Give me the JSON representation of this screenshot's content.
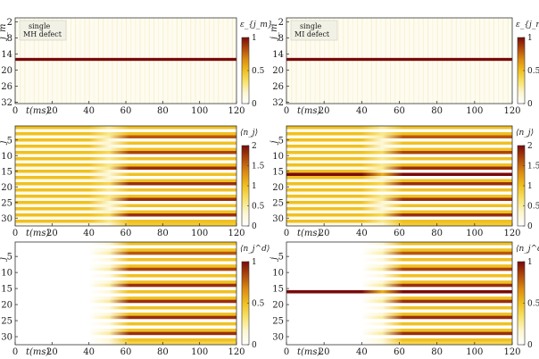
{
  "figure": {
    "colormap": [
      "#ffffff",
      "#fcf6d0",
      "#f8e26a",
      "#f0c020",
      "#dc8c12",
      "#b04a0c",
      "#7a0a0a"
    ]
  },
  "chart_data": [
    {
      "type": "heatmap",
      "panel": "top-left",
      "xlabel": "t(ms)",
      "ylabel": "j_m",
      "x_ticks": [
        0,
        20,
        40,
        60,
        80,
        100,
        120
      ],
      "y_ticks": [
        2,
        8,
        14,
        20,
        26,
        32
      ],
      "xlim": [
        0,
        120
      ],
      "ylim": [
        1,
        32
      ],
      "colorbar_label": "ε_{j_m}",
      "colorbar_ticks": [
        0,
        0.5,
        1
      ],
      "clim": [
        0,
        1
      ],
      "annotation": [
        "single",
        "MH defect"
      ],
      "baseline": 0.05,
      "defect_rows": [
        16
      ],
      "defect_value": 1.0
    },
    {
      "type": "heatmap",
      "panel": "top-right",
      "xlabel": "t(ms)",
      "ylabel": "j_m",
      "x_ticks": [
        0,
        20,
        40,
        60,
        80,
        100,
        120
      ],
      "y_ticks": [
        2,
        8,
        14,
        20,
        26,
        32
      ],
      "xlim": [
        0,
        120
      ],
      "ylim": [
        1,
        32
      ],
      "colorbar_label": "ε_{j_m}",
      "colorbar_ticks": [
        0,
        0.5,
        1
      ],
      "clim": [
        0,
        1
      ],
      "annotation": [
        "single",
        "MI defect"
      ],
      "baseline": 0.05,
      "defect_rows": [
        16
      ],
      "defect_value": 1.0
    },
    {
      "type": "heatmap",
      "panel": "middle-left",
      "xlabel": "t(ms)",
      "ylabel": "j",
      "x_ticks": [
        0,
        20,
        40,
        60,
        80,
        100,
        120
      ],
      "y_ticks": [
        5,
        10,
        15,
        20,
        25,
        30
      ],
      "xlim": [
        0,
        120
      ],
      "ylim": [
        1,
        32
      ],
      "colorbar_label": "⟨n_j⟩",
      "colorbar_ticks": [
        0,
        0.5,
        1,
        1.5,
        2
      ],
      "clim": [
        0,
        2
      ],
      "rows": 32,
      "row_values_initial": [
        1,
        0.15,
        1,
        0.15,
        1,
        0.15,
        1,
        0.15,
        1,
        0.15,
        1,
        0.15,
        1,
        0.15,
        1,
        0.15,
        1,
        0.15,
        1,
        0.15,
        1,
        0.15,
        1,
        0.15,
        1,
        0.15,
        1,
        0.15,
        1,
        0.15,
        1,
        0.15
      ],
      "row_values_final": [
        1,
        0,
        1,
        1.6,
        0,
        1,
        0,
        1,
        1.7,
        0,
        1,
        0,
        1,
        1.8,
        0,
        1,
        0,
        1,
        1.8,
        0,
        1,
        0,
        1,
        1.8,
        0,
        1,
        0,
        1,
        1.8,
        0,
        1,
        0.9
      ],
      "transition_ms": [
        40,
        62
      ]
    },
    {
      "type": "heatmap",
      "panel": "middle-right",
      "xlabel": "t(ms)",
      "ylabel": "j",
      "x_ticks": [
        0,
        20,
        40,
        60,
        80,
        100,
        120
      ],
      "y_ticks": [
        5,
        10,
        15,
        20,
        25,
        30
      ],
      "xlim": [
        0,
        120
      ],
      "ylim": [
        1,
        32
      ],
      "colorbar_label": "⟨n_j⟩",
      "colorbar_ticks": [
        0,
        0.5,
        1,
        1.5,
        2
      ],
      "clim": [
        0,
        2
      ],
      "rows": 32,
      "row_values_initial": [
        1,
        0.15,
        1,
        0.15,
        1,
        0.15,
        1,
        0.15,
        1,
        0.15,
        1,
        0.15,
        1,
        0.15,
        1,
        2,
        1,
        0.15,
        1,
        0.15,
        1,
        0.15,
        1,
        0.15,
        1,
        0.15,
        1,
        0.15,
        1,
        0.15,
        1,
        0.15
      ],
      "row_values_final": [
        1,
        0,
        1,
        1.6,
        0,
        1,
        0,
        1,
        1.7,
        0,
        1,
        0,
        1,
        1.8,
        0,
        2,
        0,
        1,
        1.8,
        0,
        1,
        0,
        1,
        1.8,
        0,
        1,
        0,
        1,
        1.8,
        0,
        1,
        0.9
      ],
      "defect_rows": [
        16
      ],
      "transition_ms": [
        40,
        62
      ]
    },
    {
      "type": "heatmap",
      "panel": "bottom-left",
      "xlabel": "t(ms)",
      "ylabel": "j",
      "x_ticks": [
        0,
        20,
        40,
        60,
        80,
        100,
        120
      ],
      "y_ticks": [
        5,
        10,
        15,
        20,
        25,
        30
      ],
      "xlim": [
        0,
        120
      ],
      "ylim": [
        1,
        32
      ],
      "colorbar_label": "⟨n_j^d⟩",
      "colorbar_ticks": [
        0,
        0.5,
        1
      ],
      "clim": [
        0,
        1
      ],
      "rows": 32,
      "row_values_initial": [
        0,
        0,
        0,
        0,
        0,
        0,
        0,
        0,
        0,
        0,
        0,
        0,
        0,
        0,
        0,
        0,
        0,
        0,
        0,
        0,
        0,
        0,
        0,
        0,
        0,
        0,
        0,
        0,
        0,
        0,
        0,
        0
      ],
      "row_values_final": [
        0.5,
        0,
        0.5,
        0.8,
        0,
        0.5,
        0,
        0.5,
        0.85,
        0,
        0.5,
        0,
        0.5,
        0.9,
        0,
        0.5,
        0,
        0.5,
        0.9,
        0,
        0.5,
        0,
        0.5,
        0.9,
        0,
        0.5,
        0,
        0.5,
        0.9,
        0,
        0.5,
        0.4
      ],
      "transition_ms": [
        40,
        62
      ]
    },
    {
      "type": "heatmap",
      "panel": "bottom-right",
      "xlabel": "t(ms)",
      "ylabel": "j",
      "x_ticks": [
        0,
        20,
        40,
        60,
        80,
        100,
        120
      ],
      "y_ticks": [
        5,
        10,
        15,
        20,
        25,
        30
      ],
      "xlim": [
        0,
        120
      ],
      "ylim": [
        1,
        32
      ],
      "colorbar_label": "⟨n_j^d⟩",
      "colorbar_ticks": [
        0,
        0.5,
        1
      ],
      "clim": [
        0,
        1
      ],
      "rows": 32,
      "row_values_initial": [
        0,
        0,
        0,
        0,
        0,
        0,
        0,
        0,
        0,
        0,
        0,
        0,
        0,
        0,
        0,
        1,
        0,
        0,
        0,
        0,
        0,
        0,
        0,
        0,
        0,
        0,
        0,
        0,
        0,
        0,
        0,
        0
      ],
      "row_values_final": [
        0.5,
        0,
        0.5,
        0.8,
        0,
        0.5,
        0,
        0.5,
        0.85,
        0,
        0.5,
        0,
        0.5,
        0.9,
        0,
        1,
        0,
        0.5,
        0.9,
        0,
        0.5,
        0,
        0.5,
        0.9,
        0,
        0.5,
        0,
        0.5,
        0.9,
        0,
        0.5,
        0.4
      ],
      "defect_rows": [
        16
      ],
      "transition_ms": [
        40,
        62
      ]
    }
  ]
}
